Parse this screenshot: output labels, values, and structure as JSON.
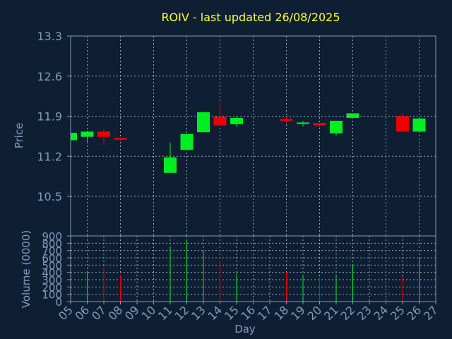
{
  "colors": {
    "background": "#0f1f33",
    "axis": "#7f9bbb",
    "grid": "#9aa7b5",
    "text": "#7f9bbb",
    "title": "#ffff33",
    "up": "#00ee22",
    "down": "#ee0000"
  },
  "chart_data": {
    "type": "candlestick",
    "title": "ROIV - last updated 26/08/2025",
    "price_panel": {
      "ylabel": "Price",
      "ylim": [
        10.5,
        13.3
      ],
      "yticks": [
        "13.3",
        "12.6",
        "11.9",
        "11.2",
        "10.5"
      ],
      "grid": true
    },
    "volume_panel": {
      "ylabel": "Volume (0000)",
      "ylim": [
        0,
        900
      ],
      "yticks": [
        "900",
        "800",
        "700",
        "600",
        "500",
        "400",
        "300",
        "200",
        "100",
        "0"
      ],
      "grid": true
    },
    "xlabel": "Day",
    "x_ticks": [
      "05",
      "06",
      "07",
      "08",
      "09",
      "10",
      "11",
      "12",
      "13",
      "14",
      "15",
      "16",
      "17",
      "18",
      "19",
      "20",
      "21",
      "22",
      "23",
      "24",
      "25",
      "26",
      "27"
    ],
    "candles": [
      {
        "day": "05",
        "open": 11.48,
        "high": 11.63,
        "low": 11.48,
        "close": 11.61,
        "volume": 0
      },
      {
        "day": "06",
        "open": 11.54,
        "high": 11.65,
        "low": 11.44,
        "close": 11.63,
        "volume": 420
      },
      {
        "day": "07",
        "open": 11.63,
        "high": 11.68,
        "low": 11.4,
        "close": 11.54,
        "volume": 470
      },
      {
        "day": "08",
        "open": 11.52,
        "high": 11.52,
        "low": 11.47,
        "close": 11.49,
        "volume": 370
      },
      {
        "day": "11",
        "open": 10.91,
        "high": 11.44,
        "low": 10.91,
        "close": 11.18,
        "volume": 750
      },
      {
        "day": "12",
        "open": 11.31,
        "high": 11.59,
        "low": 11.31,
        "close": 11.59,
        "volume": 850
      },
      {
        "day": "13",
        "open": 11.62,
        "high": 11.97,
        "low": 11.62,
        "close": 11.97,
        "volume": 700
      },
      {
        "day": "14",
        "open": 11.89,
        "high": 12.13,
        "low": 11.74,
        "close": 11.74,
        "volume": 560
      },
      {
        "day": "15",
        "open": 11.76,
        "high": 11.89,
        "low": 11.71,
        "close": 11.87,
        "volume": 380
      },
      {
        "day": "18",
        "open": 11.85,
        "high": 11.89,
        "low": 11.79,
        "close": 11.82,
        "volume": 400
      },
      {
        "day": "19",
        "open": 11.77,
        "high": 11.82,
        "low": 11.72,
        "close": 11.79,
        "volume": 370
      },
      {
        "day": "20",
        "open": 11.78,
        "high": 11.78,
        "low": 11.69,
        "close": 11.74,
        "volume": 330
      },
      {
        "day": "21",
        "open": 11.6,
        "high": 11.82,
        "low": 11.56,
        "close": 11.82,
        "volume": 350
      },
      {
        "day": "22",
        "open": 11.87,
        "high": 11.95,
        "low": 11.87,
        "close": 11.95,
        "volume": 510
      },
      {
        "day": "25",
        "open": 11.9,
        "high": 11.95,
        "low": 11.62,
        "close": 11.63,
        "volume": 350
      },
      {
        "day": "26",
        "open": 11.63,
        "high": 11.87,
        "low": 11.63,
        "close": 11.86,
        "volume": 600
      }
    ]
  }
}
